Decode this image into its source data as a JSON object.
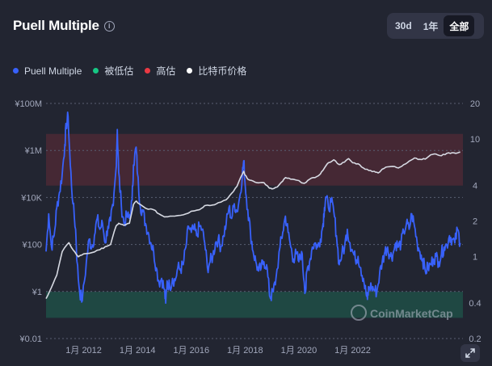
{
  "header": {
    "title": "Puell Multiple",
    "info_icon": "info-circle-icon",
    "ranges": [
      "30d",
      "1年",
      "全部"
    ],
    "active_range": "全部"
  },
  "legend": [
    {
      "label": "Puell Multiple",
      "color": "#3861fb"
    },
    {
      "label": "被低估",
      "color": "#16c784"
    },
    {
      "label": "高估",
      "color": "#ea3943"
    },
    {
      "label": "比特币价格",
      "color": "#ffffff"
    }
  ],
  "watermark": "CoinMarketCap",
  "expand_icon": "expand-arrows-icon",
  "chart_data": {
    "type": "line",
    "x_tick_labels": [
      "1月 2012",
      "1月 2014",
      "1月 2016",
      "1月 2018",
      "1月 2020",
      "1月 2022"
    ],
    "left_axis": {
      "ticks": [
        "¥0.01",
        "¥1",
        "¥100",
        "¥10K",
        "¥1M",
        "¥100M"
      ],
      "values": [
        0.01,
        1,
        100,
        10000,
        1000000,
        100000000
      ],
      "scale": "log"
    },
    "right_axis": {
      "ticks": [
        "0.2",
        "0.4",
        "1",
        "2",
        "4",
        "10",
        "20"
      ],
      "values": [
        0.2,
        0.4,
        1,
        2,
        4,
        10,
        20
      ],
      "scale": "log"
    },
    "grid": "dotted horizontal",
    "bands": [
      {
        "label": "高估",
        "from": 4,
        "to": 11,
        "color": "#ea3943"
      },
      {
        "label": "被低估",
        "from": 0.3,
        "to": 0.5,
        "color": "#16c784"
      }
    ],
    "series": [
      {
        "name": "Puell Multiple",
        "axis": "right",
        "color": "#3861fb",
        "points": [
          [
            2010.6,
            1.1
          ],
          [
            2010.7,
            2.3
          ],
          [
            2010.8,
            1.2
          ],
          [
            2010.9,
            1.5
          ],
          [
            2011.0,
            2.6
          ],
          [
            2011.1,
            3.5
          ],
          [
            2011.2,
            5.0
          ],
          [
            2011.3,
            9.0
          ],
          [
            2011.35,
            13
          ],
          [
            2011.42,
            15.5
          ],
          [
            2011.5,
            6.0
          ],
          [
            2011.6,
            2.8
          ],
          [
            2011.7,
            1.7
          ],
          [
            2011.75,
            0.9
          ],
          [
            2011.85,
            0.5
          ],
          [
            2011.95,
            0.42
          ],
          [
            2012.1,
            0.9
          ],
          [
            2012.2,
            1.4
          ],
          [
            2012.3,
            1.2
          ],
          [
            2012.4,
            1.5
          ],
          [
            2012.5,
            2.1
          ],
          [
            2012.6,
            1.7
          ],
          [
            2012.7,
            1.9
          ],
          [
            2012.8,
            1.3
          ],
          [
            2012.9,
            1.8
          ],
          [
            2013.0,
            2.0
          ],
          [
            2013.1,
            2.7
          ],
          [
            2013.2,
            5.5
          ],
          [
            2013.25,
            12
          ],
          [
            2013.3,
            5.2
          ],
          [
            2013.4,
            2.7
          ],
          [
            2013.5,
            1.9
          ],
          [
            2013.6,
            2.2
          ],
          [
            2013.7,
            2.1
          ],
          [
            2013.8,
            3.0
          ],
          [
            2013.85,
            6.0
          ],
          [
            2013.95,
            8.5
          ],
          [
            2014.0,
            5.0
          ],
          [
            2014.1,
            2.7
          ],
          [
            2014.2,
            2.4
          ],
          [
            2014.3,
            1.9
          ],
          [
            2014.4,
            1.6
          ],
          [
            2014.5,
            1.3
          ],
          [
            2014.6,
            1.1
          ],
          [
            2014.7,
            0.8
          ],
          [
            2014.8,
            0.6
          ],
          [
            2014.9,
            0.65
          ],
          [
            2015.0,
            0.52
          ],
          [
            2015.05,
            0.4
          ],
          [
            2015.1,
            0.62
          ],
          [
            2015.2,
            0.55
          ],
          [
            2015.3,
            0.65
          ],
          [
            2015.4,
            0.62
          ],
          [
            2015.5,
            0.8
          ],
          [
            2015.6,
            0.78
          ],
          [
            2015.7,
            0.85
          ],
          [
            2015.8,
            1.2
          ],
          [
            2015.9,
            1.8
          ],
          [
            2016.0,
            1.6
          ],
          [
            2016.1,
            1.7
          ],
          [
            2016.2,
            1.5
          ],
          [
            2016.3,
            1.8
          ],
          [
            2016.4,
            1.7
          ],
          [
            2016.5,
            1.3
          ],
          [
            2016.6,
            0.8
          ],
          [
            2016.7,
            0.9
          ],
          [
            2016.8,
            1.0
          ],
          [
            2016.9,
            1.3
          ],
          [
            2017.0,
            1.4
          ],
          [
            2017.1,
            1.2
          ],
          [
            2017.2,
            1.5
          ],
          [
            2017.3,
            1.9
          ],
          [
            2017.4,
            2.6
          ],
          [
            2017.5,
            2.1
          ],
          [
            2017.6,
            2.8
          ],
          [
            2017.7,
            2.4
          ],
          [
            2017.8,
            3.2
          ],
          [
            2017.9,
            5.0
          ],
          [
            2017.95,
            6.5
          ],
          [
            2018.0,
            4.2
          ],
          [
            2018.1,
            2.5
          ],
          [
            2018.2,
            1.6
          ],
          [
            2018.3,
            1.1
          ],
          [
            2018.4,
            0.9
          ],
          [
            2018.5,
            0.75
          ],
          [
            2018.6,
            0.8
          ],
          [
            2018.7,
            0.9
          ],
          [
            2018.8,
            0.85
          ],
          [
            2018.9,
            0.5
          ],
          [
            2018.95,
            0.45
          ],
          [
            2019.05,
            0.5
          ],
          [
            2019.15,
            0.65
          ],
          [
            2019.3,
            1.2
          ],
          [
            2019.4,
            1.6
          ],
          [
            2019.5,
            2.2
          ],
          [
            2019.6,
            1.6
          ],
          [
            2019.7,
            1.2
          ],
          [
            2019.8,
            0.95
          ],
          [
            2019.9,
            1.05
          ],
          [
            2020.0,
            0.9
          ],
          [
            2020.1,
            1.1
          ],
          [
            2020.2,
            0.6
          ],
          [
            2020.25,
            0.5
          ],
          [
            2020.3,
            0.75
          ],
          [
            2020.4,
            0.9
          ],
          [
            2020.5,
            1.2
          ],
          [
            2020.6,
            1.3
          ],
          [
            2020.7,
            1.2
          ],
          [
            2020.8,
            1.4
          ],
          [
            2020.9,
            1.9
          ],
          [
            2020.95,
            2.6
          ],
          [
            2021.0,
            3.2
          ],
          [
            2021.1,
            2.6
          ],
          [
            2021.2,
            2.9
          ],
          [
            2021.3,
            2.4
          ],
          [
            2021.4,
            1.5
          ],
          [
            2021.5,
            0.85
          ],
          [
            2021.6,
            1.05
          ],
          [
            2021.7,
            1.2
          ],
          [
            2021.8,
            1.7
          ],
          [
            2021.9,
            1.3
          ],
          [
            2022.0,
            1.1
          ],
          [
            2022.1,
            0.95
          ],
          [
            2022.2,
            1.0
          ],
          [
            2022.3,
            0.8
          ],
          [
            2022.4,
            0.65
          ],
          [
            2022.5,
            0.48
          ],
          [
            2022.55,
            0.43
          ],
          [
            2022.6,
            0.55
          ],
          [
            2022.7,
            0.55
          ],
          [
            2022.8,
            0.52
          ],
          [
            2022.9,
            0.5
          ],
          [
            2023.0,
            0.7
          ],
          [
            2023.1,
            0.9
          ],
          [
            2023.2,
            1.1
          ],
          [
            2023.3,
            1.2
          ],
          [
            2023.4,
            1.0
          ],
          [
            2023.5,
            1.05
          ],
          [
            2023.6,
            1.3
          ],
          [
            2023.7,
            1.2
          ],
          [
            2023.8,
            1.3
          ],
          [
            2023.9,
            1.6
          ],
          [
            2024.0,
            1.9
          ],
          [
            2024.1,
            1.7
          ],
          [
            2024.2,
            2.3
          ],
          [
            2024.3,
            1.8
          ],
          [
            2024.4,
            1.3
          ],
          [
            2024.5,
            1.1
          ],
          [
            2024.6,
            0.95
          ],
          [
            2024.7,
            0.75
          ],
          [
            2024.8,
            0.8
          ],
          [
            2024.9,
            0.85
          ],
          [
            2025.0,
            0.95
          ],
          [
            2025.1,
            1.0
          ],
          [
            2025.2,
            0.9
          ],
          [
            2025.3,
            1.05
          ],
          [
            2025.4,
            1.2
          ],
          [
            2025.5,
            1.25
          ],
          [
            2025.6,
            1.5
          ],
          [
            2025.7,
            1.4
          ],
          [
            2025.8,
            1.3
          ],
          [
            2025.9,
            1.7
          ],
          [
            2026.0,
            1.3
          ]
        ]
      },
      {
        "name": "比特币价格",
        "axis": "left",
        "color": "#ffffff",
        "points": [
          [
            2010.6,
            0.5
          ],
          [
            2010.8,
            1.5
          ],
          [
            2011.0,
            5
          ],
          [
            2011.2,
            50
          ],
          [
            2011.45,
            120
          ],
          [
            2011.6,
            60
          ],
          [
            2011.8,
            30
          ],
          [
            2012.0,
            40
          ],
          [
            2012.3,
            45
          ],
          [
            2012.6,
            60
          ],
          [
            2012.8,
            80
          ],
          [
            2013.0,
            100
          ],
          [
            2013.2,
            600
          ],
          [
            2013.3,
            800
          ],
          [
            2013.5,
            650
          ],
          [
            2013.7,
            800
          ],
          [
            2013.85,
            5000
          ],
          [
            2013.95,
            7000
          ],
          [
            2014.0,
            6000
          ],
          [
            2014.3,
            3500
          ],
          [
            2014.6,
            3000
          ],
          [
            2014.8,
            2000
          ],
          [
            2015.0,
            1500
          ],
          [
            2015.2,
            1600
          ],
          [
            2015.5,
            1700
          ],
          [
            2015.8,
            2000
          ],
          [
            2016.0,
            2600
          ],
          [
            2016.3,
            3000
          ],
          [
            2016.5,
            4500
          ],
          [
            2016.8,
            4800
          ],
          [
            2017.0,
            6000
          ],
          [
            2017.3,
            8000
          ],
          [
            2017.5,
            15000
          ],
          [
            2017.7,
            30000
          ],
          [
            2017.9,
            100000
          ],
          [
            2017.95,
            130000
          ],
          [
            2018.0,
            90000
          ],
          [
            2018.1,
            60000
          ],
          [
            2018.3,
            50000
          ],
          [
            2018.5,
            42000
          ],
          [
            2018.7,
            43000
          ],
          [
            2018.9,
            25000
          ],
          [
            2019.0,
            23000
          ],
          [
            2019.2,
            28000
          ],
          [
            2019.4,
            50000
          ],
          [
            2019.5,
            70000
          ],
          [
            2019.7,
            60000
          ],
          [
            2019.9,
            55000
          ],
          [
            2020.2,
            40000
          ],
          [
            2020.4,
            60000
          ],
          [
            2020.6,
            70000
          ],
          [
            2020.8,
            100000
          ],
          [
            2020.95,
            180000
          ],
          [
            2021.1,
            300000
          ],
          [
            2021.3,
            400000
          ],
          [
            2021.5,
            250000
          ],
          [
            2021.7,
            320000
          ],
          [
            2021.85,
            450000
          ],
          [
            2022.0,
            300000
          ],
          [
            2022.2,
            270000
          ],
          [
            2022.4,
            180000
          ],
          [
            2022.6,
            140000
          ],
          [
            2022.8,
            130000
          ],
          [
            2022.95,
            110000
          ],
          [
            2023.1,
            160000
          ],
          [
            2023.3,
            200000
          ],
          [
            2023.5,
            210000
          ],
          [
            2023.7,
            180000
          ],
          [
            2023.9,
            250000
          ],
          [
            2024.1,
            350000
          ],
          [
            2024.3,
            480000
          ],
          [
            2024.5,
            420000
          ],
          [
            2024.7,
            430000
          ],
          [
            2024.9,
            650000
          ],
          [
            2025.1,
            700000
          ],
          [
            2025.3,
            600000
          ],
          [
            2025.5,
            750000
          ],
          [
            2025.7,
            800000
          ],
          [
            2025.9,
            780000
          ],
          [
            2026.0,
            850000
          ]
        ]
      }
    ]
  }
}
